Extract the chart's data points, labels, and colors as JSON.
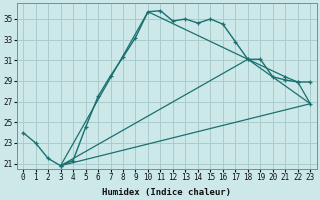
{
  "xlabel": "Humidex (Indice chaleur)",
  "bg_color": "#cce8e8",
  "grid_color": "#aacccc",
  "line_color": "#1a7070",
  "xlim": [
    -0.5,
    23.5
  ],
  "ylim": [
    20.5,
    36.5
  ],
  "yticks": [
    21,
    23,
    25,
    27,
    29,
    31,
    33,
    35
  ],
  "xticks": [
    0,
    1,
    2,
    3,
    4,
    5,
    6,
    7,
    8,
    9,
    10,
    11,
    12,
    13,
    14,
    15,
    16,
    17,
    18,
    19,
    20,
    21,
    22,
    23
  ],
  "line1_x": [
    0,
    1,
    2,
    3,
    4,
    5,
    6,
    7,
    8,
    9,
    10,
    11,
    12,
    13,
    14,
    15,
    16,
    17,
    18,
    19,
    20,
    21,
    22,
    23
  ],
  "line1_y": [
    24.0,
    23.0,
    21.5,
    20.8,
    21.3,
    24.5,
    27.5,
    29.5,
    31.3,
    33.2,
    35.7,
    35.8,
    34.8,
    35.0,
    34.6,
    35.0,
    34.5,
    32.8,
    31.1,
    31.1,
    29.4,
    29.1,
    28.9,
    28.9
  ],
  "line2_x": [
    3,
    23
  ],
  "line2_y": [
    20.8,
    26.8
  ],
  "line2b_x": [
    3,
    18,
    21,
    22,
    23
  ],
  "line2b_y": [
    20.8,
    31.1,
    29.4,
    28.9,
    26.8
  ],
  "line3_x": [
    3,
    10,
    18,
    23
  ],
  "line3_y": [
    20.8,
    35.7,
    31.1,
    26.8
  ]
}
